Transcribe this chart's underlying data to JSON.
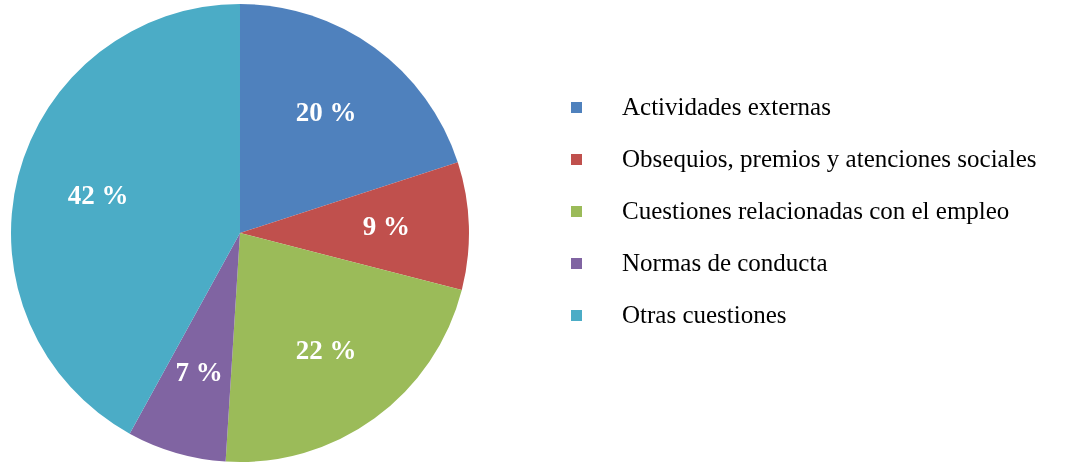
{
  "chart_data": {
    "type": "pie",
    "categories": [
      "Actividades externas",
      "Obsequios, premios y atenciones sociales",
      "Cuestiones relacionadas con el empleo",
      "Normas de conducta",
      "Otras cuestiones"
    ],
    "values": [
      20,
      9,
      22,
      7,
      42
    ],
    "colors": [
      "#4f81bd",
      "#c0504d",
      "#9bbb59",
      "#8064a2",
      "#4bacc6"
    ],
    "value_labels": [
      "20 %",
      "9 %",
      "22 %",
      "7 %",
      "42 %"
    ],
    "legend": "right"
  }
}
